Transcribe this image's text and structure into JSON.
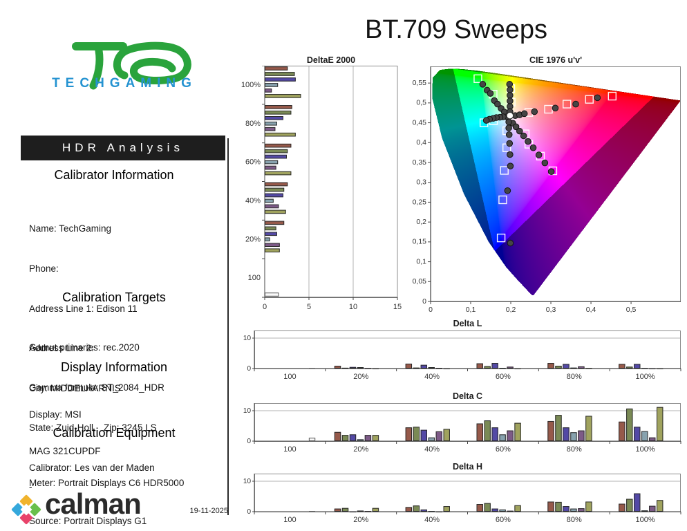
{
  "report": {
    "title": "BT.709 Sweeps",
    "page_label": "HDR Analysis",
    "date": "19-11-2025",
    "brand_logo_text": "TECHGAMING",
    "footer_logo_text": "calman",
    "sections": {
      "calibrator": {
        "heading": "Calibrator Information",
        "lines": [
          "Name: TechGaming",
          "Phone:",
          "Address Line 1: Edison 11",
          "Address Line 2:",
          "City: MIDDELHARNIS",
          "State: Zuid-Holl.   Zip: 3245 LS",
          "Calibrator: Les van der Maden"
        ]
      },
      "targets": {
        "heading": "Calibration Targets",
        "lines": [
          "Gamut primaries: rec.2020",
          "Gamma formula: ST_2084_HDR"
        ]
      },
      "display": {
        "heading": "Display Information",
        "lines": [
          "Display: MSI",
          "MAG 321CUPDF",
          "-"
        ]
      },
      "equipment": {
        "heading": "Calibration Equipment",
        "lines": [
          "Meter: Portrait Displays C6 HDR5000",
          "Source: Portrait Displays G1"
        ]
      }
    }
  },
  "colors": {
    "red": "#96594a",
    "green": "#7a8a55",
    "blue": "#5349a5",
    "cyan": "#87a2ae",
    "magenta": "#7d5a87",
    "yellow": "#a0a35e",
    "white": "#fafafa",
    "bar_stroke": "#2b2b2b",
    "axis": "#444444",
    "box": "#8c8c8c",
    "grid": "#b3b3b3",
    "brand_green": "#2aa33c",
    "brand_blue": "#2593d1",
    "calman_top": "#f0b32d",
    "calman_left": "#35a8dc",
    "calman_right": "#6abf4b",
    "calman_bottom": "#e8436a"
  },
  "chart_data": [
    {
      "id": "deltae",
      "type": "bar",
      "orientation": "horizontal",
      "title": "DeltaE 2000",
      "xlim": [
        0,
        15
      ],
      "xticks": [
        [
          0,
          "0"
        ],
        [
          5,
          "5"
        ],
        [
          10,
          "10"
        ],
        [
          15,
          "15"
        ]
      ],
      "gridlines": [
        5,
        10
      ],
      "series_order": [
        "red",
        "green",
        "blue",
        "cyan",
        "magenta",
        "yellow",
        "white"
      ],
      "categories": [
        {
          "label": "100%",
          "bars": {
            "red": 2.6,
            "green": 3.4,
            "blue": 3.5,
            "cyan": 1.5,
            "magenta": 0.8,
            "yellow": 4.1
          }
        },
        {
          "label": "80%",
          "bars": {
            "red": 3.1,
            "green": 3.0,
            "blue": 2.1,
            "cyan": 1.4,
            "magenta": 1.2,
            "yellow": 3.5
          }
        },
        {
          "label": "60%",
          "bars": {
            "red": 3.0,
            "green": 2.6,
            "blue": 2.5,
            "cyan": 1.5,
            "magenta": 1.3,
            "yellow": 3.0
          }
        },
        {
          "label": "40%",
          "bars": {
            "red": 2.6,
            "green": 2.2,
            "blue": 2.1,
            "cyan": 1.0,
            "magenta": 1.6,
            "yellow": 2.4
          }
        },
        {
          "label": "20%",
          "bars": {
            "red": 2.2,
            "green": 1.3,
            "blue": 1.4,
            "cyan": 0.6,
            "magenta": 1.7,
            "yellow": 1.7
          }
        },
        {
          "label": "100",
          "bars": {
            "white": 1.6
          }
        }
      ]
    },
    {
      "id": "cie",
      "type": "scatter",
      "title": "CIE 1976 u'v'",
      "xlim": [
        0,
        0.624
      ],
      "ylim": [
        0,
        0.592
      ],
      "xticks": [
        [
          0,
          "0"
        ],
        [
          0.1,
          "0,1"
        ],
        [
          0.2,
          "0,2"
        ],
        [
          0.3,
          "0,3"
        ],
        [
          0.4,
          "0,4"
        ],
        [
          0.5,
          "0,5"
        ]
      ],
      "yticks": [
        [
          0,
          "0"
        ],
        [
          0.05,
          "0,05"
        ],
        [
          0.1,
          "0,1"
        ],
        [
          0.15,
          "0,15"
        ],
        [
          0.2,
          "0,2"
        ],
        [
          0.25,
          "0,25"
        ],
        [
          0.3,
          "0,3"
        ],
        [
          0.35,
          "0,35"
        ],
        [
          0.4,
          "0,4"
        ],
        [
          0.45,
          "0,45"
        ],
        [
          0.5,
          "0,5"
        ],
        [
          0.55,
          "0,55"
        ]
      ],
      "white_point": [
        0.198,
        0.468
      ],
      "sweeps": {
        "red": {
          "squares": [
            [
              0.245,
              0.476
            ],
            [
              0.294,
              0.484
            ],
            [
              0.34,
              0.497
            ],
            [
              0.396,
              0.509
            ],
            [
              0.453,
              0.517
            ]
          ],
          "circles": [
            [
              0.211,
              0.468
            ],
            [
              0.222,
              0.47
            ],
            [
              0.234,
              0.473
            ],
            [
              0.259,
              0.478
            ],
            [
              0.311,
              0.487
            ],
            [
              0.362,
              0.497
            ],
            [
              0.416,
              0.513
            ]
          ]
        },
        "green": {
          "squares": [
            [
              0.118,
              0.561
            ],
            [
              0.156,
              0.522
            ]
          ],
          "circles": [
            [
              0.13,
              0.547
            ],
            [
              0.141,
              0.532
            ],
            [
              0.149,
              0.524
            ],
            [
              0.159,
              0.506
            ],
            [
              0.167,
              0.497
            ],
            [
              0.176,
              0.486
            ],
            [
              0.184,
              0.477
            ]
          ]
        },
        "yellow": {
          "squares": [
            [
              0.2,
              0.536
            ],
            [
              0.201,
              0.502
            ]
          ],
          "circles": [
            [
              0.197,
              0.547
            ],
            [
              0.198,
              0.533
            ],
            [
              0.198,
              0.519
            ],
            [
              0.198,
              0.505
            ],
            [
              0.198,
              0.491
            ],
            [
              0.198,
              0.478
            ]
          ]
        },
        "cyan": {
          "squares": [
            [
              0.157,
              0.455
            ],
            [
              0.133,
              0.45
            ]
          ],
          "circles": [
            [
              0.19,
              0.465
            ],
            [
              0.181,
              0.465
            ],
            [
              0.173,
              0.464
            ],
            [
              0.164,
              0.463
            ],
            [
              0.156,
              0.461
            ],
            [
              0.147,
              0.459
            ],
            [
              0.139,
              0.456
            ]
          ]
        },
        "magenta": {
          "squares": [
            [
              0.236,
              0.422
            ],
            [
              0.245,
              0.396
            ],
            [
              0.274,
              0.366
            ],
            [
              0.305,
              0.329
            ]
          ],
          "circles": [
            [
              0.205,
              0.449
            ],
            [
              0.213,
              0.44
            ],
            [
              0.222,
              0.429
            ],
            [
              0.232,
              0.417
            ],
            [
              0.243,
              0.403
            ],
            [
              0.256,
              0.387
            ],
            [
              0.27,
              0.369
            ],
            [
              0.285,
              0.349
            ],
            [
              0.301,
              0.327
            ]
          ]
        },
        "blue": {
          "squares": [
            [
              0.19,
              0.43
            ],
            [
              0.19,
              0.387
            ],
            [
              0.184,
              0.33
            ],
            [
              0.18,
              0.256
            ],
            [
              0.176,
              0.16
            ]
          ],
          "circles": [
            [
              0.195,
              0.452
            ],
            [
              0.195,
              0.437
            ],
            [
              0.196,
              0.42
            ],
            [
              0.197,
              0.398
            ],
            [
              0.198,
              0.37
            ],
            [
              0.199,
              0.341
            ],
            [
              0.192,
              0.279
            ],
            [
              0.199,
              0.147
            ]
          ]
        }
      }
    },
    {
      "id": "delta_l",
      "type": "bar",
      "orientation": "vertical",
      "title": "Delta L",
      "ylim": [
        0,
        12.5
      ],
      "yticks": [
        [
          0,
          "0"
        ],
        [
          10,
          "10"
        ]
      ],
      "gridlines": [
        10
      ],
      "series_order": [
        "red",
        "green",
        "blue",
        "cyan",
        "magenta",
        "yellow",
        "white"
      ],
      "categories": [
        {
          "label": "100",
          "bars": {
            "white": 0.15
          }
        },
        {
          "label": "20%",
          "bars": {
            "red": 0.9,
            "green": 0.25,
            "blue": 0.5,
            "cyan": 0.45,
            "magenta": 0.15,
            "yellow": 0.1
          }
        },
        {
          "label": "40%",
          "bars": {
            "red": 1.6,
            "green": 0.3,
            "blue": 1.2,
            "cyan": 0.45,
            "magenta": 0.2,
            "yellow": 0.1
          }
        },
        {
          "label": "60%",
          "bars": {
            "red": 1.7,
            "green": 0.8,
            "blue": 1.8,
            "cyan": 0.2,
            "magenta": 0.6,
            "yellow": 0.1
          }
        },
        {
          "label": "80%",
          "bars": {
            "red": 1.8,
            "green": 0.9,
            "blue": 1.5,
            "cyan": 0.3,
            "magenta": 0.7,
            "yellow": 0.15
          }
        },
        {
          "label": "100%",
          "bars": {
            "red": 1.5,
            "green": 0.6,
            "blue": 1.5,
            "cyan": 0.15,
            "magenta": 0.1,
            "yellow": 0.1
          }
        }
      ]
    },
    {
      "id": "delta_c",
      "type": "bar",
      "orientation": "vertical",
      "title": "Delta C",
      "ylim": [
        0,
        12.5
      ],
      "yticks": [
        [
          0,
          "0"
        ],
        [
          10,
          "10"
        ]
      ],
      "gridlines": [
        10
      ],
      "series_order": [
        "red",
        "green",
        "blue",
        "cyan",
        "magenta",
        "yellow",
        "white"
      ],
      "categories": [
        {
          "label": "100",
          "bars": {
            "white": 1.1
          }
        },
        {
          "label": "20%",
          "bars": {
            "red": 3.0,
            "green": 2.0,
            "blue": 2.2,
            "cyan": 0.6,
            "magenta": 2.0,
            "yellow": 2.0
          }
        },
        {
          "label": "40%",
          "bars": {
            "red": 4.5,
            "green": 4.7,
            "blue": 3.7,
            "cyan": 1.2,
            "magenta": 3.2,
            "yellow": 4.0
          }
        },
        {
          "label": "60%",
          "bars": {
            "red": 5.8,
            "green": 6.8,
            "blue": 4.5,
            "cyan": 2.2,
            "magenta": 3.5,
            "yellow": 6.0
          }
        },
        {
          "label": "80%",
          "bars": {
            "red": 6.6,
            "green": 8.6,
            "blue": 4.5,
            "cyan": 2.9,
            "magenta": 3.5,
            "yellow": 8.3
          }
        },
        {
          "label": "100%",
          "bars": {
            "red": 6.4,
            "green": 10.7,
            "blue": 4.7,
            "cyan": 3.3,
            "magenta": 1.2,
            "yellow": 11.2
          }
        }
      ]
    },
    {
      "id": "delta_h",
      "type": "bar",
      "orientation": "vertical",
      "title": "Delta H",
      "ylim": [
        0,
        12.5
      ],
      "yticks": [
        [
          0,
          "0"
        ],
        [
          10,
          "10"
        ]
      ],
      "gridlines": [
        10
      ],
      "series_order": [
        "red",
        "green",
        "blue",
        "cyan",
        "magenta",
        "yellow",
        "white"
      ],
      "categories": [
        {
          "label": "100",
          "bars": {
            "white": 0.2
          }
        },
        {
          "label": "20%",
          "bars": {
            "red": 1.0,
            "green": 1.2,
            "blue": 0.1,
            "cyan": 0.35,
            "magenta": 0.2,
            "yellow": 1.2
          }
        },
        {
          "label": "40%",
          "bars": {
            "red": 1.5,
            "green": 2.0,
            "blue": 0.7,
            "cyan": 0.2,
            "magenta": 0.1,
            "yellow": 1.8
          }
        },
        {
          "label": "60%",
          "bars": {
            "red": 2.5,
            "green": 2.8,
            "blue": 1.0,
            "cyan": 0.7,
            "magenta": 0.3,
            "yellow": 2.1
          }
        },
        {
          "label": "80%",
          "bars": {
            "red": 3.3,
            "green": 3.2,
            "blue": 1.8,
            "cyan": 1.0,
            "magenta": 1.1,
            "yellow": 3.3
          }
        },
        {
          "label": "100%",
          "bars": {
            "red": 2.6,
            "green": 4.2,
            "blue": 6.0,
            "cyan": 0.4,
            "magenta": 1.9,
            "yellow": 3.8
          }
        }
      ]
    }
  ]
}
